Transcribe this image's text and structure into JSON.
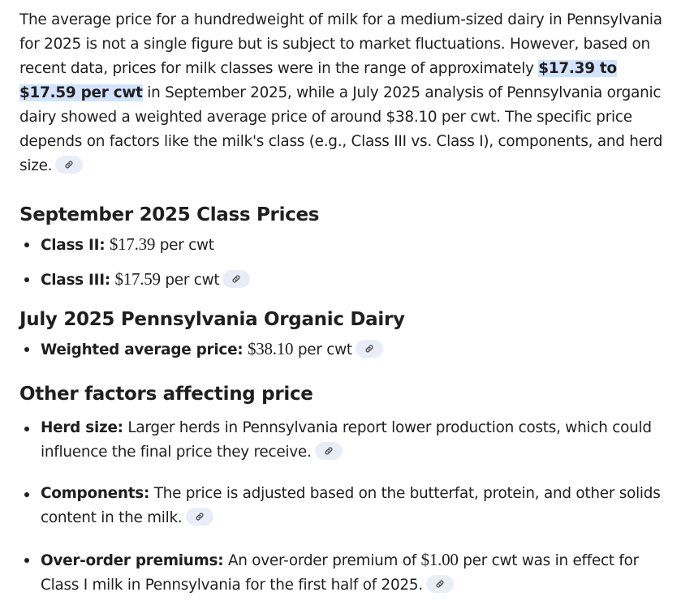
{
  "intro": {
    "part1": "The average price for a hundredweight of milk for a medium-sized dairy in Pennsylvania for 2025 is not a single figure but is subject to market fluctuations. However, based on recent data, prices for milk classes were in the range of approximately ",
    "highlight": "$17.39 to $17.59 per cwt",
    "part2": " in September 2025, while a July 2025 analysis of Pennsylvania organic dairy showed a weighted average price of around $38.10 per cwt. The specific price depends on factors like the milk's class (e.g., Class III vs. Class I), components, and herd size."
  },
  "sections": [
    {
      "heading": "September 2025 Class Prices",
      "items": [
        {
          "label": "Class II:",
          "value": "$17.39",
          "suffix": " per cwt"
        },
        {
          "label": "Class III:",
          "value": "$17.59",
          "suffix": " per cwt"
        }
      ]
    },
    {
      "heading": "July 2025 Pennsylvania Organic Dairy",
      "items": [
        {
          "label": "Weighted average price:",
          "value": "$38.10",
          "suffix": " per cwt"
        }
      ]
    },
    {
      "heading": "Other factors affecting price",
      "items": [
        {
          "label": "Herd size:",
          "text": " Larger herds in Pennsylvania report lower production costs, which could influence the final price they receive."
        },
        {
          "label": "Components:",
          "text": " The price is adjusted based on the butterfat, protein, and other solids content in the milk."
        },
        {
          "label": "Over-order premiums:",
          "text_before": " An over-order premium of ",
          "value": "$1.00",
          "text_after": " per cwt was in effect for Class I milk in Pennsylvania for the first half of 2025."
        }
      ]
    }
  ],
  "icons": {
    "source_chip": "link-icon"
  },
  "colors": {
    "highlight_bg": "#d3e3fd",
    "chip_bg": "#e9eef6",
    "text": "#1f1f1f"
  }
}
